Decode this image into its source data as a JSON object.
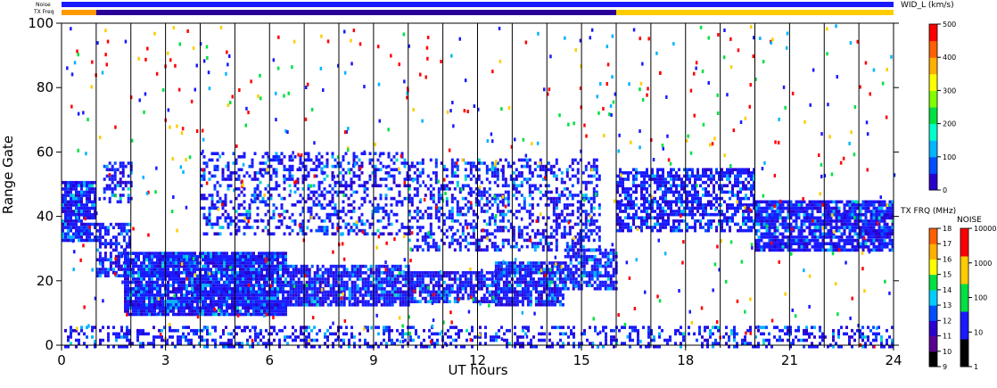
{
  "chart_data": {
    "type": "heatmap",
    "xlabel": "UT hours",
    "ylabel": "Range Gate",
    "xlim": [
      0,
      24
    ],
    "ylim": [
      0,
      100
    ],
    "x_ticks": [
      "0",
      "3",
      "6",
      "9",
      "12",
      "15",
      "18",
      "21",
      "24"
    ],
    "x_tick_values": [
      0,
      3,
      6,
      9,
      12,
      15,
      18,
      21,
      24
    ],
    "y_ticks": [
      "0",
      "20",
      "40",
      "60",
      "80",
      "100"
    ],
    "y_tick_values": [
      0,
      20,
      40,
      60,
      80,
      100
    ],
    "hour_lines": [
      1,
      2,
      3,
      4,
      5,
      6,
      7,
      8,
      9,
      10,
      11,
      12,
      13,
      14,
      15,
      16,
      17,
      18,
      19,
      20,
      21,
      22,
      23
    ],
    "status_bars": [
      {
        "label": "Noise",
        "color": "#1a1aff"
      },
      {
        "label": "TX Freq",
        "segments": [
          {
            "from": 0,
            "to": 1,
            "color": "#ff9900"
          },
          {
            "from": 1,
            "to": 16,
            "color": "#2b0099"
          },
          {
            "from": 16,
            "to": 24,
            "color": "#ffcc00"
          }
        ]
      }
    ],
    "bands": [
      {
        "x": [
          0,
          1
        ],
        "y": [
          33,
          51
        ],
        "density": 0.85
      },
      {
        "x": [
          1,
          2
        ],
        "y": [
          22,
          38
        ],
        "density": 0.6
      },
      {
        "x": [
          1.2,
          2
        ],
        "y": [
          45,
          57
        ],
        "density": 0.5
      },
      {
        "x": [
          1.8,
          6.5
        ],
        "y": [
          10,
          29
        ],
        "density": 0.93
      },
      {
        "x": [
          6.5,
          10
        ],
        "y": [
          13,
          25
        ],
        "density": 0.85
      },
      {
        "x": [
          10,
          12.5
        ],
        "y": [
          14,
          23
        ],
        "density": 0.75
      },
      {
        "x": [
          12.5,
          14.5
        ],
        "y": [
          13,
          26
        ],
        "density": 0.85
      },
      {
        "x": [
          14.5,
          16
        ],
        "y": [
          18,
          30
        ],
        "density": 0.7
      },
      {
        "x": [
          4,
          10
        ],
        "y": [
          35,
          60
        ],
        "density": 0.35
      },
      {
        "x": [
          10,
          15.5
        ],
        "y": [
          30,
          58
        ],
        "density": 0.4
      },
      {
        "x": [
          16,
          20
        ],
        "y": [
          36,
          55
        ],
        "density": 0.65
      },
      {
        "x": [
          20,
          24
        ],
        "y": [
          30,
          45
        ],
        "density": 0.85
      },
      {
        "x": [
          0,
          24
        ],
        "y": [
          0,
          6
        ],
        "density": 0.35
      }
    ],
    "colorbars": [
      {
        "title": "WID_L (km/s)",
        "ticks": [
          "500",
          "400",
          "300",
          "200",
          "100",
          "0"
        ],
        "tick_values": [
          500,
          400,
          300,
          200,
          100,
          0
        ],
        "colors": [
          "#2b00cc",
          "#0050ff",
          "#00b4ff",
          "#00ffcc",
          "#00e040",
          "#80ff00",
          "#ffff00",
          "#ffb000",
          "#ff6000",
          "#ff0000"
        ]
      },
      {
        "title": "TX FRQ (MHz)",
        "ticks": [
          "18",
          "17",
          "16",
          "15",
          "14",
          "13",
          "12",
          "11",
          "10",
          "9"
        ],
        "tick_values": [
          18,
          17,
          16,
          15,
          14,
          13,
          12,
          11,
          10,
          9
        ],
        "colors": [
          "#000000",
          "#5a0090",
          "#2b00cc",
          "#0050ff",
          "#00ccff",
          "#00e040",
          "#ffff00",
          "#ffb000",
          "#ff6000"
        ]
      },
      {
        "title": "NOISE",
        "ticks": [
          "10000",
          "1000",
          "100",
          "10",
          "1"
        ],
        "tick_values": [
          10000,
          1000,
          100,
          10,
          1
        ],
        "colors": [
          "#000000",
          "#1a1aff",
          "#00e040",
          "#ffcc00",
          "#ff0000"
        ]
      }
    ]
  }
}
